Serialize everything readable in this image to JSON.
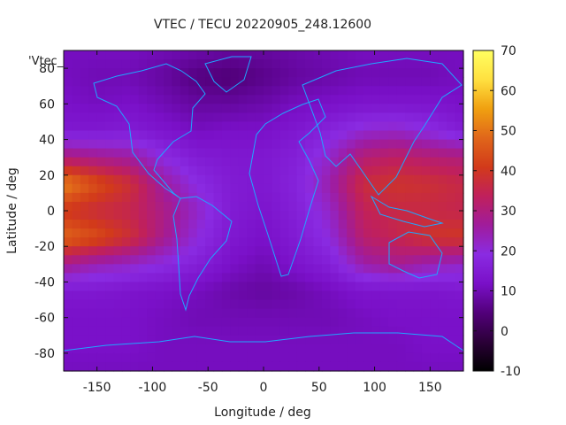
{
  "chart_data": {
    "type": "heatmap",
    "title": "VTEC / TECU 20220905_248.12600",
    "xlabel": "Longitude / deg",
    "ylabel": "Latitude / deg",
    "series_key": "'Vtec_",
    "xlim": [
      -180,
      180
    ],
    "ylim": [
      -90,
      90
    ],
    "x_ticks": [
      -150,
      -100,
      -50,
      0,
      50,
      100,
      150
    ],
    "y_ticks": [
      -80,
      -60,
      -40,
      -20,
      0,
      20,
      40,
      60,
      80
    ],
    "colorbar": {
      "range": [
        -10,
        70
      ],
      "ticks": [
        -10,
        0,
        10,
        20,
        30,
        40,
        50,
        60,
        70
      ]
    },
    "grid_lon": [
      -180,
      -150,
      -120,
      -90,
      -60,
      -30,
      0,
      30,
      60,
      90,
      120,
      150,
      180
    ],
    "grid_lat": [
      90,
      75,
      60,
      45,
      30,
      15,
      0,
      -15,
      -30,
      -45,
      -60,
      -75,
      -90
    ],
    "vtec_grid": [
      [
        11,
        11,
        11,
        10,
        9,
        8,
        8,
        9,
        10,
        11,
        11,
        11,
        11
      ],
      [
        11,
        10,
        10,
        8,
        5,
        4,
        6,
        8,
        9,
        10,
        10,
        10,
        11
      ],
      [
        12,
        11,
        12,
        10,
        8,
        8,
        9,
        11,
        12,
        13,
        13,
        13,
        12
      ],
      [
        14,
        14,
        15,
        13,
        11,
        12,
        12,
        14,
        17,
        21,
        22,
        19,
        15
      ],
      [
        30,
        28,
        26,
        19,
        15,
        14,
        14,
        16,
        22,
        31,
        33,
        31,
        30
      ],
      [
        52,
        44,
        38,
        26,
        19,
        15,
        14,
        17,
        25,
        37,
        39,
        38,
        36
      ],
      [
        40,
        37,
        35,
        29,
        22,
        15,
        13,
        16,
        22,
        34,
        36,
        36,
        35
      ],
      [
        48,
        44,
        38,
        28,
        20,
        14,
        12,
        15,
        20,
        32,
        35,
        39,
        40
      ],
      [
        28,
        24,
        22,
        19,
        16,
        12,
        10,
        13,
        16,
        25,
        28,
        24,
        22
      ],
      [
        14,
        14,
        13,
        12,
        11,
        9,
        8,
        9,
        11,
        13,
        13,
        13,
        14
      ],
      [
        12,
        12,
        12,
        11,
        10,
        10,
        10,
        10,
        10,
        11,
        12,
        12,
        12
      ],
      [
        12,
        12,
        12,
        11,
        11,
        11,
        11,
        11,
        11,
        11,
        11,
        12,
        12
      ],
      [
        11,
        11,
        11,
        11,
        11,
        11,
        11,
        11,
        11,
        11,
        11,
        11,
        11
      ]
    ],
    "coastline_color": "#1ea8ff",
    "colormap": [
      "#000000",
      "#2b0038",
      "#52007a",
      "#7a10c8",
      "#8a2be2",
      "#a01c9c",
      "#c0205c",
      "#d23a1a",
      "#e0661a",
      "#f0a010",
      "#ffe040",
      "#ffff60"
    ]
  }
}
